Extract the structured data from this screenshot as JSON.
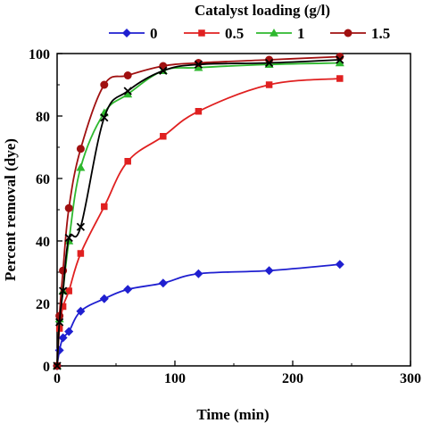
{
  "chart_data": {
    "type": "line",
    "title": "",
    "legend_title": "Catalyst loading (g/l)",
    "legend_position": "top",
    "xlabel": "Time (min)",
    "ylabel": "Percent removal (dye)",
    "xlim": [
      0,
      300
    ],
    "ylim": [
      0,
      100
    ],
    "xticks": [
      0,
      100,
      200,
      300
    ],
    "yticks": [
      0,
      20,
      40,
      60,
      80,
      100
    ],
    "grid": false,
    "series": [
      {
        "name": "0",
        "color": "#1f1fd0",
        "marker": "diamond",
        "x": [
          0,
          2,
          5,
          10,
          20,
          40,
          60,
          90,
          120,
          180,
          240
        ],
        "y": [
          0,
          5,
          9,
          11,
          17.5,
          21.5,
          24.5,
          26.5,
          29.5,
          30.5,
          32.5
        ]
      },
      {
        "name": "0.5",
        "color": "#e02020",
        "marker": "square",
        "x": [
          0,
          2,
          5,
          10,
          20,
          40,
          60,
          90,
          120,
          180,
          240
        ],
        "y": [
          0,
          12,
          19,
          24,
          36,
          51,
          65.5,
          73.5,
          81.5,
          90,
          92
        ]
      },
      {
        "name": "1",
        "color": "#2eb82e",
        "marker": "triangle",
        "x": [
          0,
          2,
          5,
          10,
          20,
          40,
          60,
          90,
          120,
          180,
          240
        ],
        "y": [
          0,
          15,
          24,
          40,
          63.5,
          81,
          87,
          94.5,
          95.5,
          96.5,
          97
        ]
      },
      {
        "name": "1.5",
        "color": "#a01010",
        "marker": "circle",
        "x": [
          0,
          2,
          5,
          10,
          20,
          40,
          60,
          90,
          120,
          180,
          240
        ],
        "y": [
          0,
          16,
          30.5,
          50.5,
          69.5,
          90,
          93,
          96,
          97,
          98,
          99
        ]
      },
      {
        "color": "#000000",
        "marker": "x",
        "x": [
          0,
          2,
          5,
          10,
          20,
          40,
          60,
          90,
          120,
          180,
          240
        ],
        "y": [
          0,
          14,
          24,
          41,
          44.5,
          79.5,
          88,
          94.5,
          96.5,
          97,
          98
        ]
      }
    ]
  }
}
